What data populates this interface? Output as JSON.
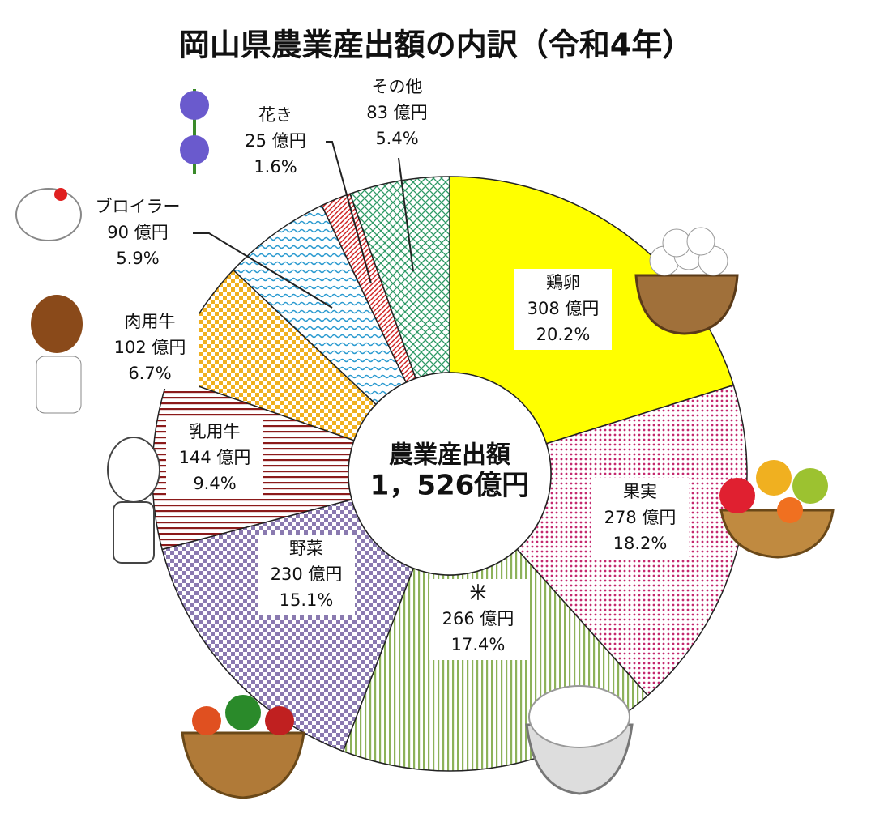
{
  "chart_data": {
    "type": "pie",
    "title": "岡山県農業産出額の内訳（令和4年）",
    "center_label": "農業産出額",
    "center_value_label": "1，526億円",
    "categories": [
      "鶏卵",
      "果実",
      "米",
      "野菜",
      "乳用牛",
      "肉用牛",
      "ブロイラー",
      "花き",
      "その他"
    ],
    "values": [
      308,
      278,
      266,
      230,
      144,
      102,
      90,
      25,
      83
    ],
    "value_labels": [
      "308 億円",
      "278 億円",
      "266 億円",
      "230 億円",
      "144 億円",
      "102 億円",
      "90 億円",
      "25 億円",
      "83 億円"
    ],
    "percent_labels": [
      "20.2%",
      "18.2%",
      "17.4%",
      "15.1%",
      "9.4%",
      "6.7%",
      "5.9%",
      "1.6%",
      "5.4%"
    ],
    "colors": [
      "#ffff00",
      "#c4286e",
      "#8db25a",
      "#8a7ab0",
      "#8b1a1a",
      "#f0b020",
      "#2a9ad0",
      "#d02020",
      "#2e9a66"
    ],
    "patterns": [
      "solid",
      "dots",
      "vstripes",
      "checker",
      "hstripes",
      "checker",
      "wave",
      "diagonal",
      "diamond"
    ]
  }
}
